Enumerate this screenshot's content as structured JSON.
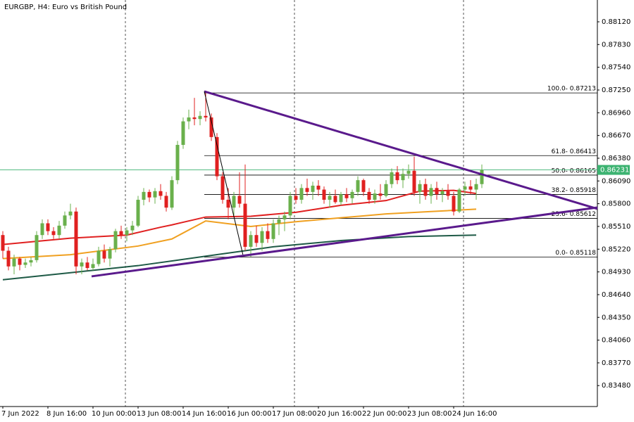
{
  "chart_data": {
    "type": "candlestick",
    "title": "EURGBP, H4:  Euro vs British Pound",
    "categories": [
      "7 Jun 2022",
      null,
      null,
      null,
      null,
      null,
      null,
      null,
      "8 Jun 16:00",
      null,
      null,
      null,
      null,
      null,
      null,
      null,
      "10 Jun 00:00",
      null,
      null,
      null,
      null,
      null,
      null,
      null,
      "13 Jun 08:00",
      null,
      null,
      null,
      null,
      null,
      null,
      null,
      "14 Jun 16:00",
      null,
      null,
      null,
      null,
      null,
      null,
      null,
      "16 Jun 00:00",
      null,
      null,
      null,
      null,
      null,
      null,
      null,
      "17 Jun 08:00",
      null,
      null,
      null,
      null,
      null,
      null,
      null,
      "20 Jun 16:00",
      null,
      null,
      null,
      null,
      null,
      null,
      null,
      "22 Jun 00:00",
      null,
      null,
      null,
      null,
      null,
      null,
      null,
      "23 Jun 08:00",
      null,
      null,
      null,
      null,
      null,
      null,
      null,
      "24 Jun 16:00",
      null,
      null,
      null,
      null,
      null
    ],
    "open": [
      0.854,
      0.852,
      0.85,
      0.851,
      0.8502,
      0.8505,
      0.8508,
      0.854,
      0.8555,
      0.8545,
      0.854,
      0.8552,
      0.8565,
      0.857,
      0.85,
      0.8505,
      0.8498,
      0.8503,
      0.852,
      0.851,
      0.8522,
      0.8545,
      0.854,
      0.8546,
      0.8552,
      0.8585,
      0.8595,
      0.8588,
      0.8596,
      0.859,
      0.8575,
      0.861,
      0.8655,
      0.8685,
      0.869,
      0.8688,
      0.8692,
      0.869,
      0.8665,
      0.8615,
      0.8585,
      0.8575,
      0.859,
      0.858,
      0.8525,
      0.854,
      0.853,
      0.8545,
      0.8535,
      0.8555,
      0.856,
      0.8565,
      0.859,
      0.8585,
      0.86,
      0.8595,
      0.8603,
      0.8598,
      0.8585,
      0.859,
      0.8582,
      0.8592,
      0.8587,
      0.8595,
      0.861,
      0.8595,
      0.8585,
      0.8593,
      0.859,
      0.8605,
      0.862,
      0.861,
      0.8618,
      0.8622,
      0.8595,
      0.8605,
      0.859,
      0.86,
      0.8592,
      0.8596,
      0.859,
      0.857,
      0.8598,
      0.8602,
      0.8598,
      0.8605
    ],
    "high": [
      0.8545,
      0.8525,
      0.8515,
      0.8512,
      0.851,
      0.8512,
      0.8545,
      0.856,
      0.856,
      0.855,
      0.8558,
      0.857,
      0.858,
      0.8575,
      0.851,
      0.8512,
      0.851,
      0.8525,
      0.8528,
      0.8525,
      0.8548,
      0.8552,
      0.855,
      0.8558,
      0.859,
      0.86,
      0.8598,
      0.86,
      0.8605,
      0.8595,
      0.8615,
      0.866,
      0.869,
      0.87,
      0.8715,
      0.8698,
      0.8721,
      0.8695,
      0.867,
      0.862,
      0.86,
      0.8595,
      0.862,
      0.863,
      0.8545,
      0.8552,
      0.855,
      0.8555,
      0.856,
      0.8565,
      0.857,
      0.8595,
      0.86,
      0.8605,
      0.8612,
      0.8608,
      0.861,
      0.8602,
      0.8595,
      0.8598,
      0.8595,
      0.86,
      0.8598,
      0.8615,
      0.8612,
      0.86,
      0.8598,
      0.8605,
      0.861,
      0.8625,
      0.8628,
      0.8625,
      0.863,
      0.864,
      0.861,
      0.8612,
      0.8605,
      0.8608,
      0.86,
      0.8605,
      0.8595,
      0.86,
      0.8608,
      0.861,
      0.8612,
      0.863
    ],
    "low": [
      0.851,
      0.8495,
      0.849,
      0.8495,
      0.8498,
      0.85,
      0.8505,
      0.8535,
      0.854,
      0.8535,
      0.8535,
      0.8548,
      0.856,
      0.849,
      0.849,
      0.8495,
      0.8495,
      0.85,
      0.8505,
      0.85,
      0.8518,
      0.8535,
      0.8532,
      0.854,
      0.855,
      0.8578,
      0.8582,
      0.858,
      0.8585,
      0.857,
      0.8572,
      0.8605,
      0.865,
      0.8675,
      0.868,
      0.868,
      0.8685,
      0.866,
      0.861,
      0.858,
      0.856,
      0.8565,
      0.8575,
      0.852,
      0.8512,
      0.8525,
      0.852,
      0.853,
      0.853,
      0.854,
      0.8545,
      0.856,
      0.858,
      0.858,
      0.859,
      0.8585,
      0.859,
      0.858,
      0.8575,
      0.858,
      0.8578,
      0.8582,
      0.858,
      0.859,
      0.859,
      0.858,
      0.858,
      0.8585,
      0.8588,
      0.86,
      0.8605,
      0.86,
      0.8612,
      0.859,
      0.858,
      0.8585,
      0.858,
      0.8585,
      0.8582,
      0.8585,
      0.8565,
      0.8568,
      0.859,
      0.8592,
      0.8585,
      0.86
    ],
    "close": [
      0.852,
      0.85,
      0.851,
      0.8502,
      0.8505,
      0.8508,
      0.854,
      0.8555,
      0.8545,
      0.854,
      0.8552,
      0.8565,
      0.857,
      0.85,
      0.8505,
      0.8498,
      0.8503,
      0.852,
      0.851,
      0.8522,
      0.8545,
      0.854,
      0.8546,
      0.8552,
      0.8585,
      0.8595,
      0.8588,
      0.8596,
      0.859,
      0.8575,
      0.861,
      0.8655,
      0.8685,
      0.869,
      0.8688,
      0.8692,
      0.869,
      0.8665,
      0.8615,
      0.8585,
      0.8575,
      0.859,
      0.858,
      0.8525,
      0.854,
      0.853,
      0.8545,
      0.8535,
      0.8555,
      0.856,
      0.8565,
      0.859,
      0.8585,
      0.86,
      0.8595,
      0.8603,
      0.8598,
      0.8585,
      0.859,
      0.8582,
      0.8592,
      0.8587,
      0.8595,
      0.861,
      0.8595,
      0.8585,
      0.8593,
      0.859,
      0.8605,
      0.862,
      0.861,
      0.8618,
      0.8622,
      0.8595,
      0.8605,
      0.859,
      0.86,
      0.8592,
      0.8596,
      0.859,
      0.857,
      0.8598,
      0.8602,
      0.8598,
      0.8605,
      0.8623
    ],
    "up_color": "#6ab04c",
    "down_color": "#e02020",
    "moving_averages": [
      {
        "color": "#e02020",
        "x": [
          0,
          12,
          22,
          28,
          30,
          36,
          44,
          52,
          60,
          68,
          74,
          80,
          84
        ],
        "values": [
          0.8528,
          0.8536,
          0.854,
          0.855,
          0.8553,
          0.8563,
          0.8564,
          0.8569,
          0.8578,
          0.8584,
          0.8596,
          0.8597,
          0.8593
        ]
      },
      {
        "color": "#f0a020",
        "x": [
          0,
          12,
          24,
          30,
          36,
          44,
          52,
          60,
          68,
          76,
          84
        ],
        "values": [
          0.851,
          0.8515,
          0.8526,
          0.8535,
          0.8558,
          0.8551,
          0.8557,
          0.8562,
          0.8567,
          0.857,
          0.8573
        ]
      },
      {
        "color": "#1e5a46",
        "x": [
          0,
          12,
          24,
          36,
          48,
          60,
          72,
          84
        ],
        "values": [
          0.8483,
          0.8492,
          0.8501,
          0.8513,
          0.8525,
          0.8533,
          0.8538,
          0.854
        ]
      }
    ],
    "trendlines": [
      {
        "color": "#5a1a8c",
        "x1": 35.75,
        "y1": 0.87232,
        "x2": 105.5,
        "y2": 0.85734
      },
      {
        "color": "#5a1a8c",
        "x1": 15.75,
        "y1": 0.84873,
        "x2": 105.5,
        "y2": 0.85752
      },
      {
        "color": "#000000",
        "x1": 35.75,
        "y1": 0.87232,
        "x2": 42.6,
        "y2": 0.85151
      }
    ],
    "fib_start": 35.75,
    "fib_levels": [
      {
        "value": 0.87213,
        "label": "100.0- 0.87213"
      },
      {
        "value": 0.86413,
        "label": "61.8- 0.86413"
      },
      {
        "value": 0.86165,
        "label": "50.0- 0.86165"
      },
      {
        "value": 0.85918,
        "label": "38.2- 0.85918"
      },
      {
        "value": 0.85612,
        "label": "23.6- 0.85612"
      },
      {
        "value": 0.85118,
        "label": "0.0- 0.85118"
      }
    ],
    "last_price": {
      "value": 0.86231,
      "label": "0.86231"
    },
    "ylim": [
      0.83213,
      0.88398
    ],
    "yticks": [
      {
        "value": 0.8812,
        "label": "0.88120"
      },
      {
        "value": 0.8783,
        "label": "0.87830"
      },
      {
        "value": 0.8754,
        "label": "0.87540"
      },
      {
        "value": 0.8725,
        "label": "0.87250"
      },
      {
        "value": 0.8696,
        "label": "0.86960"
      },
      {
        "value": 0.8667,
        "label": "0.86670"
      },
      {
        "value": 0.8638,
        "label": "0.86380"
      },
      {
        "value": 0.8609,
        "label": "0.86090"
      },
      {
        "value": 0.858,
        "label": "0.85800"
      },
      {
        "value": 0.8551,
        "label": "0.85510"
      },
      {
        "value": 0.8522,
        "label": "0.85220"
      },
      {
        "value": 0.8493,
        "label": "0.84930"
      },
      {
        "value": 0.8464,
        "label": "0.84640"
      },
      {
        "value": 0.8435,
        "label": "0.84350"
      },
      {
        "value": 0.8406,
        "label": "0.84060"
      },
      {
        "value": 0.8377,
        "label": "0.83770"
      },
      {
        "value": 0.8348,
        "label": "0.83480"
      }
    ]
  }
}
